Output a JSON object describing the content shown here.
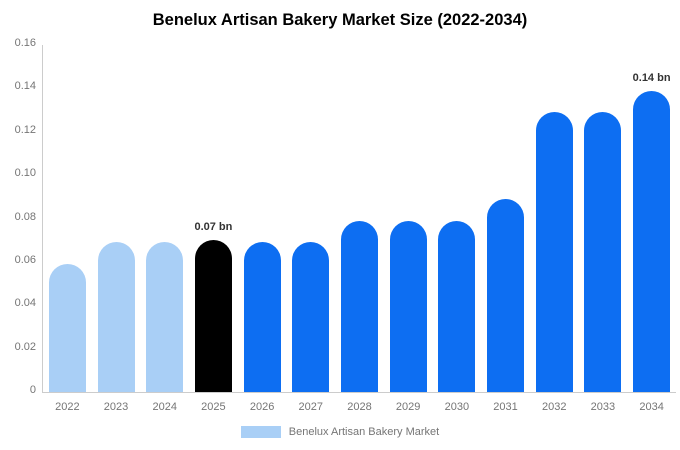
{
  "chart_data": {
    "type": "bar",
    "title": "Benelux Artisan Bakery Market Size (2022-2034)",
    "xlabel": "",
    "ylabel": "",
    "categories": [
      "2022",
      "2023",
      "2024",
      "2025",
      "2026",
      "2027",
      "2028",
      "2029",
      "2030",
      "2031",
      "2032",
      "2033",
      "2034"
    ],
    "values": [
      0.059,
      0.069,
      0.069,
      0.07,
      0.069,
      0.069,
      0.079,
      0.079,
      0.079,
      0.089,
      0.129,
      0.129,
      0.139
    ],
    "bar_colors": [
      "#A9CFF6",
      "#A9CFF6",
      "#A9CFF6",
      "#000000",
      "#0D6EF2",
      "#0D6EF2",
      "#0D6EF2",
      "#0D6EF2",
      "#0D6EF2",
      "#0D6EF2",
      "#0D6EF2",
      "#0D6EF2",
      "#0D6EF2"
    ],
    "bar_labels": [
      "",
      "",
      "",
      "0.07 bn",
      "",
      "",
      "",
      "",
      "",
      "",
      "",
      "",
      "0.14 bn"
    ],
    "ylim": [
      0,
      0.16
    ],
    "yticks": [
      "0.16",
      "0.14",
      "0.12",
      "0.10",
      "0.08",
      "0.06",
      "0.04",
      "0.02",
      "0"
    ],
    "grid": false,
    "legend_position": "bottom",
    "legend": [
      {
        "label": "Benelux Artisan Bakery Market",
        "color": "#A9CFF6"
      }
    ]
  },
  "colors": {
    "light_blue": "#A9CFF6",
    "blue": "#0D6EF2",
    "highlight_black": "#000000",
    "axis_line": "#cccccc",
    "tick_text": "#757575",
    "data_label_text": "#333333",
    "title_text": "#000000",
    "background": "#ffffff"
  }
}
